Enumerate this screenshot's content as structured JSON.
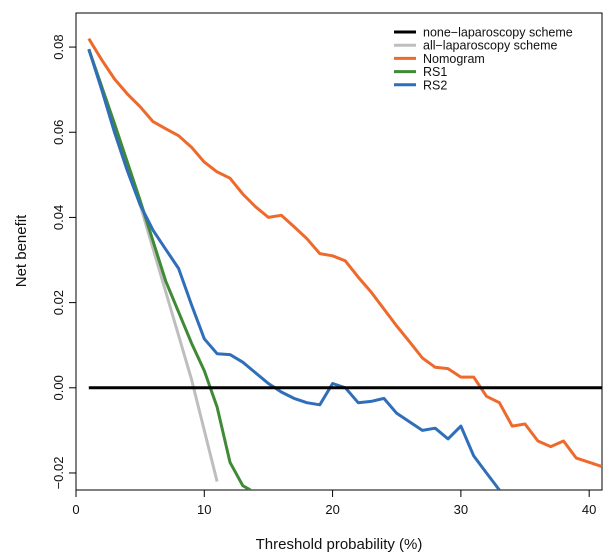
{
  "chart_data": {
    "type": "line",
    "xlabel": "Threshold probability (%)",
    "ylabel": "Net benefit",
    "xlim": [
      0,
      41
    ],
    "ylim": [
      -0.024,
      0.088
    ],
    "xticks": [
      "0",
      "10",
      "20",
      "30",
      "40"
    ],
    "yticks": [
      "−0.02",
      "0.00",
      "0.02",
      "0.04",
      "0.06",
      "0.08"
    ],
    "legend_position": "top-right",
    "grid": false,
    "series": [
      {
        "name": "none−laparoscopy scheme",
        "color": "#000000",
        "x": [
          1,
          41
        ],
        "y": [
          0,
          0
        ]
      },
      {
        "name": "all−laparoscopy scheme",
        "color": "#bebebe",
        "x": [
          1,
          3,
          5,
          7,
          9,
          11
        ],
        "y": [
          0.0795,
          0.062,
          0.043,
          0.0225,
          0.002,
          -0.022
        ]
      },
      {
        "name": "Nomogram",
        "color": "#ee6a2c",
        "x": [
          1,
          2,
          3,
          4,
          5,
          6,
          7,
          8,
          9,
          10,
          11,
          12,
          13,
          14,
          15,
          16,
          17,
          18,
          19,
          20,
          21,
          22,
          23,
          24,
          25,
          26,
          27,
          28,
          29,
          30,
          31,
          32,
          33,
          34,
          35,
          36,
          37,
          38,
          39,
          40,
          41
        ],
        "y": [
          0.082,
          0.077,
          0.0725,
          0.069,
          0.066,
          0.0625,
          0.0608,
          0.0592,
          0.0565,
          0.053,
          0.0507,
          0.0492,
          0.0455,
          0.0425,
          0.04,
          0.0405,
          0.0378,
          0.035,
          0.0315,
          0.031,
          0.0298,
          0.026,
          0.0225,
          0.0185,
          0.0145,
          0.0108,
          0.007,
          0.0048,
          0.0045,
          0.0025,
          0.0025,
          -0.002,
          -0.0035,
          -0.009,
          -0.0085,
          -0.0125,
          -0.0138,
          -0.0125,
          -0.0165,
          -0.0175,
          -0.0185
        ]
      },
      {
        "name": "RS1",
        "color": "#3f8a37",
        "x": [
          1,
          3,
          5,
          7,
          9,
          10,
          11,
          12,
          13,
          13.6
        ],
        "y": [
          0.0795,
          0.062,
          0.044,
          0.025,
          0.0105,
          0.004,
          -0.0045,
          -0.0175,
          -0.023,
          -0.024
        ]
      },
      {
        "name": "RS2",
        "color": "#2f6fb9",
        "x": [
          1,
          2,
          3,
          4,
          5,
          6,
          7,
          8,
          9,
          10,
          11,
          12,
          13,
          14,
          15,
          16,
          17,
          18,
          19,
          20,
          21,
          22,
          23,
          24,
          25,
          26,
          27,
          28,
          29,
          30,
          31,
          32,
          33
        ],
        "y": [
          0.0795,
          0.07,
          0.06,
          0.051,
          0.043,
          0.037,
          0.0325,
          0.028,
          0.0195,
          0.0115,
          0.008,
          0.0078,
          0.006,
          0.0035,
          0.001,
          -0.001,
          -0.0025,
          -0.0035,
          -0.004,
          0.001,
          0.0,
          -0.0035,
          -0.0032,
          -0.0025,
          -0.006,
          -0.008,
          -0.01,
          -0.0095,
          -0.012,
          -0.009,
          -0.016,
          -0.02,
          -0.024
        ]
      }
    ]
  }
}
